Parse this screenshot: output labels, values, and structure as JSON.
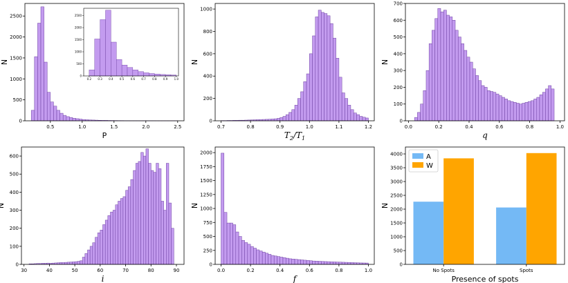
{
  "colors": {
    "hist_fill": "#c39bef",
    "hist_edge": "#6b3fa0",
    "A": "#74b9f5",
    "W": "#ffa500"
  },
  "chart_data": [
    {
      "type": "bar",
      "xlabel": "P",
      "ylabel": "N",
      "xlim": [
        0.1,
        2.6
      ],
      "ylim": [
        0,
        2800
      ],
      "xticks": [
        "0.5",
        "1.0",
        "1.5",
        "2.0",
        "2.5"
      ],
      "yticks": [
        "0",
        "500",
        "1000",
        "1500",
        "2000",
        "2500"
      ],
      "bin_start": 0.2,
      "bin_width": 0.05,
      "values": [
        250,
        1530,
        2330,
        2720,
        1400,
        680,
        450,
        350,
        250,
        180,
        130,
        100,
        80,
        60,
        50,
        40,
        30,
        25,
        20,
        18,
        15,
        12,
        10,
        10,
        8,
        7,
        6,
        5,
        5,
        4,
        4,
        3,
        3,
        3,
        2,
        2,
        2,
        2,
        2,
        1,
        1,
        1,
        1,
        1,
        1,
        1
      ],
      "inset": {
        "xlim": [
          0.15,
          1.02
        ],
        "ylim": [
          0,
          2800
        ],
        "xticks": [
          "0.2",
          "0.3",
          "0.4",
          "0.5",
          "0.6",
          "0.7",
          "0.8",
          "0.9",
          "1.0"
        ],
        "yticks": [
          "0",
          "500",
          "1000",
          "1500",
          "2000",
          "2500"
        ],
        "bin_start": 0.2,
        "bin_width": 0.05,
        "values": [
          250,
          1530,
          2330,
          2720,
          1400,
          680,
          450,
          350,
          250,
          180,
          130,
          100,
          80,
          60,
          50,
          40
        ]
      }
    },
    {
      "type": "bar",
      "xlabel": "T2/T1",
      "xlabel_main": "T",
      "xlabel_sub1": "2",
      "xlabel_slash": "/T",
      "xlabel_sub2": "1",
      "ylabel": "N",
      "xlim": [
        0.68,
        1.22
      ],
      "ylim": [
        0,
        1050
      ],
      "xticks": [
        "0.7",
        "0.8",
        "0.9",
        "1.0",
        "1.1",
        "1.2"
      ],
      "yticks": [
        "0",
        "200",
        "400",
        "600",
        "800",
        "1000"
      ],
      "bin_start": 0.7,
      "bin_width": 0.01,
      "values": [
        2,
        2,
        3,
        3,
        4,
        4,
        5,
        5,
        6,
        7,
        8,
        9,
        10,
        11,
        12,
        13,
        14,
        16,
        18,
        22,
        30,
        40,
        55,
        75,
        100,
        140,
        200,
        260,
        350,
        420,
        600,
        760,
        930,
        990,
        970,
        960,
        940,
        870,
        740,
        560,
        390,
        250,
        200,
        140,
        100,
        70,
        55,
        40,
        32,
        25
      ]
    },
    {
      "type": "bar",
      "xlabel": "q",
      "ylabel": "N",
      "xlim": [
        -0.02,
        1.03
      ],
      "ylim": [
        0,
        700
      ],
      "xticks": [
        "0.0",
        "0.2",
        "0.4",
        "0.6",
        "0.8",
        "1.0"
      ],
      "yticks": [
        "0",
        "100",
        "200",
        "300",
        "400",
        "500",
        "600",
        "700"
      ],
      "bin_start": 0.04,
      "bin_width": 0.0192,
      "values": [
        20,
        50,
        100,
        180,
        300,
        460,
        540,
        610,
        670,
        650,
        660,
        630,
        620,
        600,
        540,
        500,
        460,
        420,
        380,
        350,
        310,
        270,
        240,
        210,
        200,
        180,
        175,
        170,
        160,
        150,
        140,
        130,
        120,
        115,
        110,
        105,
        100,
        105,
        110,
        115,
        120,
        130,
        140,
        155,
        170,
        190,
        210,
        190
      ]
    },
    {
      "type": "bar",
      "xlabel": "i",
      "ylabel": "N",
      "xlim": [
        29,
        93
      ],
      "ylim": [
        0,
        650
      ],
      "xticks": [
        "30",
        "40",
        "50",
        "60",
        "70",
        "80",
        "90"
      ],
      "yticks": [
        "0",
        "100",
        "200",
        "300",
        "400",
        "500",
        "600"
      ],
      "bin_start": 32,
      "bin_width": 1.0,
      "values": [
        3,
        3,
        4,
        5,
        5,
        6,
        6,
        7,
        6,
        7,
        8,
        9,
        10,
        10,
        11,
        12,
        13,
        14,
        15,
        17,
        20,
        40,
        60,
        80,
        100,
        120,
        150,
        175,
        190,
        220,
        245,
        270,
        290,
        300,
        330,
        350,
        365,
        375,
        410,
        430,
        470,
        520,
        560,
        570,
        620,
        600,
        640,
        560,
        520,
        510,
        560,
        530,
        350,
        300,
        560,
        340,
        200
      ]
    },
    {
      "type": "bar",
      "xlabel": "f",
      "ylabel": "N",
      "xlim": [
        -0.04,
        1.04
      ],
      "ylim": [
        0,
        2100
      ],
      "xticks": [
        "0.0",
        "0.2",
        "0.4",
        "0.6",
        "0.8",
        "1.0"
      ],
      "yticks": [
        "0",
        "250",
        "500",
        "750",
        "1000",
        "1250",
        "1500",
        "1750",
        "2000"
      ],
      "bin_start": 0.0,
      "bin_width": 0.02,
      "values": [
        1990,
        930,
        740,
        740,
        710,
        580,
        500,
        430,
        390,
        360,
        320,
        290,
        260,
        240,
        220,
        200,
        180,
        160,
        150,
        140,
        130,
        120,
        110,
        100,
        95,
        90,
        85,
        80,
        75,
        70,
        65,
        60,
        58,
        55,
        52,
        50,
        48,
        46,
        44,
        42,
        40,
        38,
        36,
        34,
        32,
        30,
        28,
        26,
        25,
        24
      ]
    },
    {
      "type": "bar",
      "xlabel": "Presence of spots",
      "ylabel": "N",
      "categories": [
        "No Spots",
        "Spots"
      ],
      "ylim": [
        0,
        4250
      ],
      "yticks": [
        "0",
        "500",
        "1000",
        "1500",
        "2000",
        "2500",
        "3000",
        "3500",
        "4000"
      ],
      "series": [
        {
          "name": "A",
          "values": [
            2270,
            2060
          ]
        },
        {
          "name": "W",
          "values": [
            3840,
            4030
          ]
        }
      ],
      "legend": "top-left"
    }
  ]
}
